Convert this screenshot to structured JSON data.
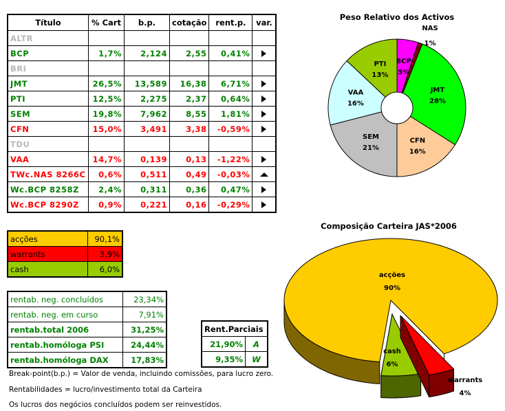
{
  "main_table": {
    "headers": [
      "Título",
      "% Cart",
      "b.p.",
      "cotação",
      "rent.p.",
      "var."
    ],
    "rows": [
      {
        "title": "ALTR",
        "pct": "",
        "bp": "",
        "cot": "",
        "rent": "",
        "var": "",
        "color": "grey"
      },
      {
        "title": "BCP",
        "pct": "1,7%",
        "bp": "2,124",
        "cot": "2,55",
        "rent": "0,41%",
        "var": "right",
        "color": "green"
      },
      {
        "title": "BRI",
        "pct": "",
        "bp": "",
        "cot": "",
        "rent": "",
        "var": "",
        "color": "grey"
      },
      {
        "title": "JMT",
        "pct": "26,5%",
        "bp": "13,589",
        "cot": "16,38",
        "rent": "6,71%",
        "var": "right",
        "color": "green"
      },
      {
        "title": "PTI",
        "pct": "12,5%",
        "bp": "2,275",
        "cot": "2,37",
        "rent": "0,64%",
        "var": "right",
        "color": "green"
      },
      {
        "title": "SEM",
        "pct": "19,8%",
        "bp": "7,962",
        "cot": "8,55",
        "rent": "1,81%",
        "var": "right",
        "color": "green"
      },
      {
        "title": "CFN",
        "pct": "15,0%",
        "bp": "3,491",
        "cot": "3,38",
        "rent": "-0,59%",
        "var": "right",
        "color": "red"
      },
      {
        "title": "TDU",
        "pct": "",
        "bp": "",
        "cot": "",
        "rent": "",
        "var": "",
        "color": "grey"
      },
      {
        "title": "VAA",
        "pct": "14,7%",
        "bp": "0,139",
        "cot": "0,13",
        "rent": "-1,22%",
        "var": "right",
        "color": "red"
      },
      {
        "title": "TWc.NAS 8266C",
        "pct": "0,6%",
        "bp": "0,511",
        "cot": "0,49",
        "rent": "-0,03%",
        "var": "up",
        "color": "red"
      },
      {
        "title": "Wc.BCP 8258Z",
        "pct": "2,4%",
        "bp": "0,311",
        "cot": "0,36",
        "rent": "0,47%",
        "var": "right",
        "color": "green"
      },
      {
        "title": "Wc.BCP 8290Z",
        "pct": "0,9%",
        "bp": "0,221",
        "cot": "0,16",
        "rent": "-0,29%",
        "var": "right",
        "color": "red"
      }
    ]
  },
  "composition_table": [
    {
      "label": "acções",
      "value": "90,1%",
      "bg": "#ffcc00"
    },
    {
      "label": "warrants",
      "value": "3,9%",
      "bg": "#ff0000"
    },
    {
      "label": "cash",
      "value": "6,0%",
      "bg": "#99cc00"
    }
  ],
  "rentab_table": [
    {
      "label": "rentab. neg. concluídos",
      "value": "23,34%",
      "bold": false
    },
    {
      "label": "rentab. neg. em curso",
      "value": "7,91%",
      "bold": false
    },
    {
      "label": "rentab.total 2006",
      "value": "31,25%",
      "bold": true
    },
    {
      "label": "rentab.homóloga PSI",
      "value": "24,44%",
      "bold": true
    },
    {
      "label": "rentab.homóloga DAX",
      "value": "17,83%",
      "bold": true
    }
  ],
  "rent_parciais": {
    "header": "Rent.Parciais",
    "rows": [
      {
        "value": "21,90%",
        "code": "A"
      },
      {
        "value": "9,35%",
        "code": "W"
      }
    ]
  },
  "notes": [
    "Break-point(b.p.) = Valor de venda, incluindo comissões, para lucro zero.",
    "Rentabilidades = lucro/investimento total da Carteira",
    "Os lucros dos negócios concluídos podem ser reinvestidos."
  ],
  "chart_data": [
    {
      "type": "pie",
      "style": "doughnut",
      "title": "Peso Relativo dos Activos",
      "categories": [
        "BCP",
        "NAS",
        "JMT",
        "CFN",
        "SEM",
        "VAA",
        "PTI"
      ],
      "values": [
        5,
        1,
        28,
        16,
        21,
        16,
        13
      ],
      "labels": [
        "5%",
        "1%",
        "28%",
        "16%",
        "21%",
        "16%",
        "13%"
      ],
      "colors": [
        "#ff00ff",
        "#800000",
        "#00ff00",
        "#ffcc99",
        "#c0c0c0",
        "#ccffff",
        "#99cc00"
      ]
    },
    {
      "type": "pie",
      "style": "3d-exploded",
      "title": "Composição Carteira JAS*2006",
      "categories": [
        "acções",
        "warrants",
        "cash"
      ],
      "values": [
        90,
        4,
        6
      ],
      "labels": [
        "90%",
        "4%",
        "6%"
      ],
      "colors": [
        "#ffcc00",
        "#ff0000",
        "#99cc00"
      ],
      "side_colors": [
        "#806600",
        "#800000",
        "#4d6600"
      ]
    }
  ]
}
